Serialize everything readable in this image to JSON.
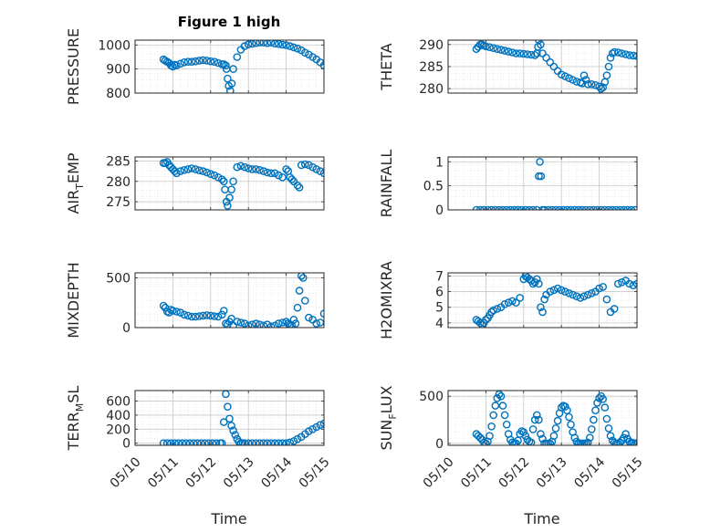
{
  "figure_title": "Figure 1 high",
  "marker_color": "#0072BD",
  "x_time_labels": [
    "05/10",
    "05/11",
    "05/12",
    "05/13",
    "05/14",
    "05/15"
  ],
  "chart_data": [
    {
      "type": "scatter",
      "name": "pressure",
      "ylabel": "PRESSURE",
      "ylabel_sub": "",
      "xlim": [
        0,
        5
      ],
      "ylim": [
        800,
        1020
      ],
      "yticks": [
        800,
        900,
        1000
      ],
      "grid": true,
      "x": [
        0.75,
        0.8,
        0.85,
        0.9,
        0.95,
        1.0,
        1.05,
        1.1,
        1.2,
        1.3,
        1.4,
        1.5,
        1.6,
        1.7,
        1.8,
        1.9,
        2.0,
        2.1,
        2.2,
        2.3,
        2.35,
        2.4,
        2.42,
        2.45,
        2.48,
        2.52,
        2.56,
        2.6,
        2.7,
        2.8,
        2.9,
        3.0,
        3.1,
        3.2,
        3.3,
        3.4,
        3.5,
        3.6,
        3.7,
        3.8,
        3.9,
        4.0,
        4.1,
        4.2,
        4.3,
        4.4,
        4.5,
        4.6,
        4.7,
        4.8,
        4.9,
        5.0
      ],
      "y": [
        940,
        935,
        930,
        925,
        915,
        910,
        918,
        915,
        922,
        928,
        930,
        930,
        932,
        935,
        937,
        935,
        932,
        930,
        925,
        920,
        920,
        915,
        900,
        860,
        830,
        810,
        840,
        900,
        950,
        980,
        995,
        1002,
        1005,
        1008,
        1010,
        1010,
        1008,
        1010,
        1006,
        1004,
        1001,
        999,
        995,
        990,
        985,
        978,
        968,
        960,
        950,
        940,
        928,
        915
      ]
    },
    {
      "type": "scatter",
      "name": "theta",
      "ylabel": "THETA",
      "ylabel_sub": "",
      "xlim": [
        0,
        5
      ],
      "ylim": [
        279,
        291
      ],
      "yticks": [
        280,
        285,
        290
      ],
      "grid": true,
      "x": [
        0.75,
        0.8,
        0.85,
        0.9,
        0.95,
        1.0,
        1.1,
        1.2,
        1.3,
        1.4,
        1.5,
        1.6,
        1.7,
        1.8,
        1.9,
        2.0,
        2.1,
        2.2,
        2.3,
        2.35,
        2.38,
        2.4,
        2.45,
        2.5,
        2.6,
        2.7,
        2.8,
        2.9,
        3.0,
        3.1,
        3.2,
        3.3,
        3.4,
        3.5,
        3.55,
        3.6,
        3.65,
        3.7,
        3.8,
        3.9,
        4.0,
        4.05,
        4.1,
        4.15,
        4.2,
        4.25,
        4.3,
        4.35,
        4.4,
        4.5,
        4.6,
        4.7,
        4.8,
        4.9,
        5.0
      ],
      "y": [
        289,
        289.5,
        290,
        290,
        289.8,
        289.6,
        289.4,
        289.2,
        289,
        288.8,
        288.6,
        288.4,
        288.2,
        288,
        288,
        287.9,
        287.8,
        287.7,
        287.6,
        288,
        289.5,
        291,
        290,
        288,
        287,
        286,
        285,
        284,
        283.2,
        282.8,
        282.4,
        282,
        281.6,
        281.4,
        281.2,
        283,
        282,
        281,
        281,
        280.8,
        280.5,
        280,
        280.3,
        281.5,
        283,
        285,
        287,
        288,
        288.3,
        288.2,
        288,
        287.8,
        287.6,
        287.5,
        287.4
      ]
    },
    {
      "type": "scatter",
      "name": "air_temp",
      "ylabel": "AIR",
      "ylabel_sub": "T",
      "ylabel_suffix": "EMP",
      "xlim": [
        0,
        5
      ],
      "ylim": [
        273,
        286
      ],
      "yticks": [
        275,
        280,
        285
      ],
      "grid": true,
      "x": [
        0.75,
        0.8,
        0.85,
        0.9,
        0.95,
        1.0,
        1.05,
        1.1,
        1.2,
        1.3,
        1.4,
        1.5,
        1.6,
        1.7,
        1.8,
        1.9,
        2.0,
        2.1,
        2.2,
        2.3,
        2.35,
        2.38,
        2.42,
        2.45,
        2.5,
        2.55,
        2.6,
        2.7,
        2.8,
        2.9,
        3.0,
        3.1,
        3.2,
        3.3,
        3.4,
        3.5,
        3.6,
        3.7,
        3.8,
        3.9,
        4.0,
        4.05,
        4.1,
        4.15,
        4.2,
        4.3,
        4.35,
        4.4,
        4.5,
        4.6,
        4.7,
        4.8,
        4.9,
        5.0
      ],
      "y": [
        284.5,
        284.5,
        284.8,
        284,
        283.5,
        283,
        282.5,
        282,
        282.5,
        282.8,
        283,
        283.2,
        283,
        282.7,
        282.5,
        282.2,
        281.8,
        281.5,
        281,
        280.5,
        280,
        278,
        275,
        274,
        276,
        278,
        280,
        283.5,
        283.8,
        283.5,
        283.2,
        283,
        283,
        282.8,
        282.5,
        282.2,
        282,
        282,
        281.5,
        281,
        283,
        282.5,
        281,
        280.5,
        280,
        279,
        278.5,
        284,
        284.2,
        284,
        283.5,
        283,
        282.5,
        282
      ]
    },
    {
      "type": "scatter",
      "name": "rainfall",
      "ylabel": "RAINFALL",
      "ylabel_sub": "",
      "xlim": [
        0,
        5
      ],
      "ylim": [
        0,
        1.1
      ],
      "yticks": [
        0,
        0.5,
        1
      ],
      "grid": true,
      "x": [
        0.75,
        0.85,
        0.95,
        1.05,
        1.15,
        1.25,
        1.35,
        1.45,
        1.55,
        1.65,
        1.75,
        1.85,
        1.95,
        2.05,
        2.15,
        2.25,
        2.35,
        2.4,
        2.43,
        2.46,
        2.5,
        2.55,
        2.65,
        2.75,
        2.85,
        2.95,
        3.05,
        3.15,
        3.25,
        3.35,
        3.45,
        3.55,
        3.65,
        3.75,
        3.85,
        3.95,
        4.05,
        4.15,
        4.25,
        4.35,
        4.45,
        4.55,
        4.65,
        4.75,
        4.85,
        4.95
      ],
      "y": [
        0,
        0,
        0,
        0,
        0,
        0,
        0,
        0,
        0,
        0,
        0,
        0,
        0,
        0,
        0,
        0,
        0,
        0.7,
        1.0,
        0.7,
        0,
        0,
        0,
        0,
        0,
        0,
        0,
        0,
        0,
        0,
        0,
        0,
        0,
        0,
        0,
        0,
        0,
        0,
        0,
        0,
        0,
        0,
        0,
        0,
        0,
        0
      ]
    },
    {
      "type": "scatter",
      "name": "mixdepth",
      "ylabel": "MIXDEPTH",
      "ylabel_sub": "",
      "xlim": [
        0,
        5
      ],
      "ylim": [
        0,
        550
      ],
      "yticks": [
        0,
        500
      ],
      "grid": true,
      "x": [
        0.75,
        0.8,
        0.85,
        0.9,
        0.95,
        1.0,
        1.1,
        1.2,
        1.3,
        1.4,
        1.5,
        1.6,
        1.7,
        1.8,
        1.9,
        2.0,
        2.1,
        2.2,
        2.3,
        2.35,
        2.4,
        2.45,
        2.5,
        2.55,
        2.6,
        2.7,
        2.8,
        2.9,
        3.0,
        3.1,
        3.2,
        3.3,
        3.4,
        3.5,
        3.6,
        3.7,
        3.8,
        3.9,
        4.0,
        4.05,
        4.1,
        4.15,
        4.2,
        4.25,
        4.3,
        4.35,
        4.4,
        4.45,
        4.5,
        4.6,
        4.7,
        4.8,
        4.9,
        5.0
      ],
      "y": [
        220,
        200,
        160,
        150,
        180,
        170,
        160,
        150,
        130,
        120,
        110,
        110,
        115,
        120,
        125,
        120,
        115,
        110,
        130,
        170,
        40,
        30,
        60,
        90,
        20,
        60,
        50,
        40,
        20,
        30,
        40,
        30,
        20,
        30,
        10,
        20,
        40,
        50,
        60,
        40,
        30,
        20,
        80,
        40,
        200,
        370,
        520,
        500,
        270,
        100,
        80,
        40,
        50,
        140
      ]
    },
    {
      "type": "scatter",
      "name": "h2omixra",
      "ylabel": "H2OMIXRA",
      "ylabel_sub": "",
      "xlim": [
        0,
        5
      ],
      "ylim": [
        3.7,
        7.2
      ],
      "yticks": [
        4,
        5,
        6,
        7
      ],
      "grid": true,
      "x": [
        0.75,
        0.8,
        0.85,
        0.9,
        0.95,
        1.0,
        1.05,
        1.1,
        1.15,
        1.2,
        1.3,
        1.4,
        1.5,
        1.6,
        1.7,
        1.8,
        1.9,
        2.0,
        2.05,
        2.1,
        2.15,
        2.2,
        2.25,
        2.3,
        2.35,
        2.4,
        2.45,
        2.5,
        2.55,
        2.6,
        2.7,
        2.8,
        2.9,
        3.0,
        3.1,
        3.2,
        3.3,
        3.4,
        3.5,
        3.6,
        3.7,
        3.8,
        3.9,
        4.0,
        4.1,
        4.2,
        4.3,
        4.4,
        4.5,
        4.6,
        4.7,
        4.8,
        4.9,
        5.0
      ],
      "y": [
        4.2,
        4.1,
        4.0,
        3.9,
        4.0,
        4.2,
        4.3,
        4.5,
        4.7,
        4.8,
        4.9,
        5.0,
        5.2,
        5.3,
        5.4,
        5.3,
        5.6,
        6.8,
        7.0,
        6.9,
        6.8,
        6.7,
        6.5,
        6.6,
        6.8,
        6.5,
        5.0,
        4.7,
        5.5,
        5.8,
        6.0,
        6.1,
        6.2,
        6.1,
        6.0,
        5.9,
        5.8,
        5.7,
        5.6,
        5.7,
        5.8,
        5.9,
        6.0,
        6.2,
        6.3,
        5.5,
        4.7,
        4.9,
        6.5,
        6.6,
        6.7,
        6.5,
        6.4,
        6.5
      ]
    },
    {
      "type": "scatter",
      "name": "terr_msl",
      "ylabel": "TERR",
      "ylabel_sub": "M",
      "ylabel_suffix": "SL",
      "xlim": [
        0,
        5
      ],
      "ylim": [
        -30,
        750
      ],
      "yticks": [
        0,
        200,
        400,
        600
      ],
      "grid": true,
      "x": [
        0.75,
        0.85,
        0.95,
        1.05,
        1.15,
        1.25,
        1.35,
        1.45,
        1.55,
        1.65,
        1.75,
        1.85,
        1.95,
        2.05,
        2.15,
        2.25,
        2.3,
        2.35,
        2.4,
        2.45,
        2.5,
        2.55,
        2.6,
        2.65,
        2.7,
        2.75,
        2.8,
        2.85,
        2.9,
        3.0,
        3.1,
        3.2,
        3.3,
        3.4,
        3.5,
        3.6,
        3.7,
        3.8,
        3.9,
        4.0,
        4.1,
        4.2,
        4.3,
        4.4,
        4.5,
        4.6,
        4.7,
        4.8,
        4.9,
        5.0
      ],
      "y": [
        0,
        0,
        0,
        0,
        0,
        0,
        0,
        0,
        0,
        0,
        0,
        0,
        0,
        0,
        0,
        0,
        0,
        300,
        700,
        520,
        350,
        250,
        180,
        120,
        60,
        20,
        0,
        0,
        0,
        0,
        0,
        0,
        0,
        0,
        0,
        0,
        0,
        0,
        0,
        0,
        10,
        30,
        60,
        90,
        130,
        170,
        200,
        230,
        260,
        280
      ]
    },
    {
      "type": "scatter",
      "name": "sun_flux",
      "ylabel": "SUN",
      "ylabel_sub": "F",
      "ylabel_suffix": "LUX",
      "xlim": [
        0,
        5
      ],
      "ylim": [
        -20,
        560
      ],
      "yticks": [
        0,
        500
      ],
      "grid": true,
      "x": [
        0.75,
        0.8,
        0.85,
        0.9,
        0.95,
        1.0,
        1.05,
        1.1,
        1.15,
        1.2,
        1.25,
        1.3,
        1.35,
        1.4,
        1.45,
        1.5,
        1.55,
        1.6,
        1.65,
        1.7,
        1.75,
        1.8,
        1.85,
        1.9,
        1.95,
        2.0,
        2.05,
        2.1,
        2.15,
        2.2,
        2.25,
        2.3,
        2.35,
        2.4,
        2.45,
        2.5,
        2.55,
        2.6,
        2.65,
        2.7,
        2.75,
        2.8,
        2.85,
        2.9,
        2.95,
        3.0,
        3.05,
        3.1,
        3.15,
        3.2,
        3.25,
        3.3,
        3.35,
        3.4,
        3.45,
        3.5,
        3.55,
        3.6,
        3.65,
        3.7,
        3.75,
        3.8,
        3.85,
        3.9,
        3.95,
        4.0,
        4.05,
        4.1,
        4.15,
        4.2,
        4.25,
        4.3,
        4.35,
        4.4,
        4.45,
        4.5,
        4.55,
        4.6,
        4.65,
        4.7,
        4.75,
        4.8,
        4.85,
        4.9,
        4.95,
        5.0
      ],
      "y": [
        100,
        80,
        60,
        40,
        10,
        0,
        20,
        80,
        180,
        300,
        400,
        480,
        520,
        500,
        400,
        300,
        200,
        100,
        40,
        10,
        0,
        0,
        30,
        100,
        130,
        120,
        80,
        40,
        20,
        10,
        150,
        250,
        300,
        250,
        100,
        50,
        0,
        0,
        0,
        0,
        20,
        80,
        160,
        240,
        320,
        380,
        400,
        390,
        350,
        280,
        200,
        120,
        60,
        20,
        0,
        0,
        0,
        0,
        0,
        10,
        60,
        150,
        250,
        350,
        430,
        480,
        500,
        470,
        380,
        260,
        160,
        80,
        30,
        10,
        0,
        0,
        10,
        30,
        60,
        100,
        50,
        20,
        10,
        5,
        0,
        0
      ]
    }
  ]
}
